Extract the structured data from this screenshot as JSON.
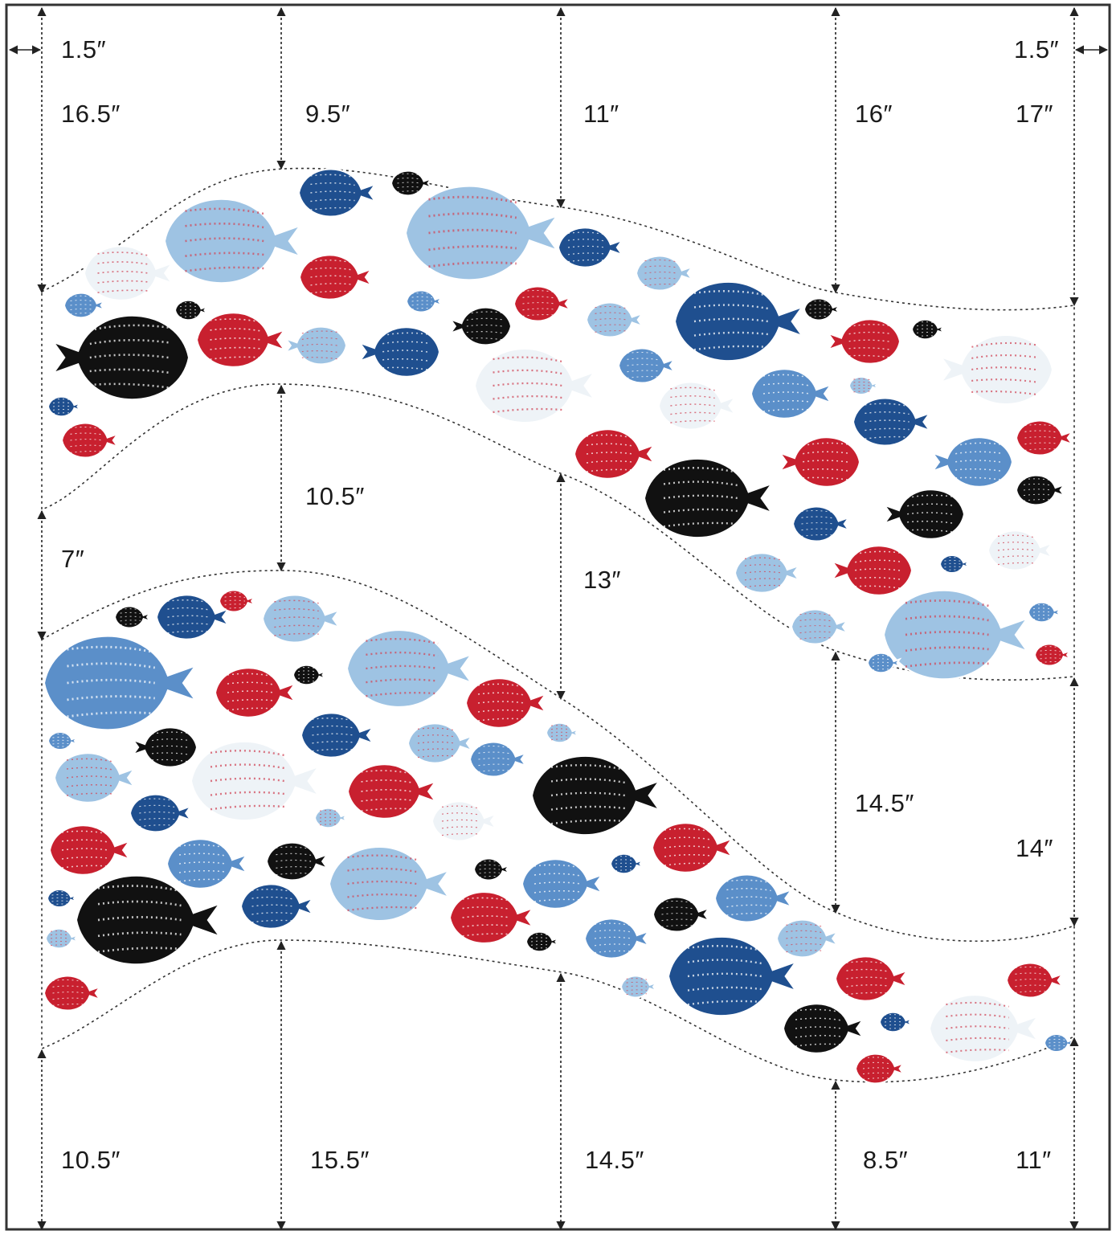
{
  "top_labels": {
    "left_margin": "1.5″",
    "right_margin": "1.5″"
  },
  "upper_wave_top": [
    "16.5″",
    "9.5″",
    "11″",
    "16″",
    "17″"
  ],
  "middle_gap": [
    "7″",
    "10.5″",
    "13″",
    "14.5″",
    "14″"
  ],
  "bottom_labels": [
    "10.5″",
    "15.5″",
    "14.5″",
    "8.5″",
    "11″"
  ],
  "colors": {
    "navy": "#1f4f8f",
    "red": "#c8202f",
    "black": "#111111",
    "sky": "#9ec3e3",
    "mid_blue": "#5b8fc9",
    "cream": "#eef3f7",
    "outline": "#555555"
  },
  "fish_fills": [
    "navy",
    "red",
    "black",
    "sky",
    "mid_blue",
    "cream"
  ]
}
